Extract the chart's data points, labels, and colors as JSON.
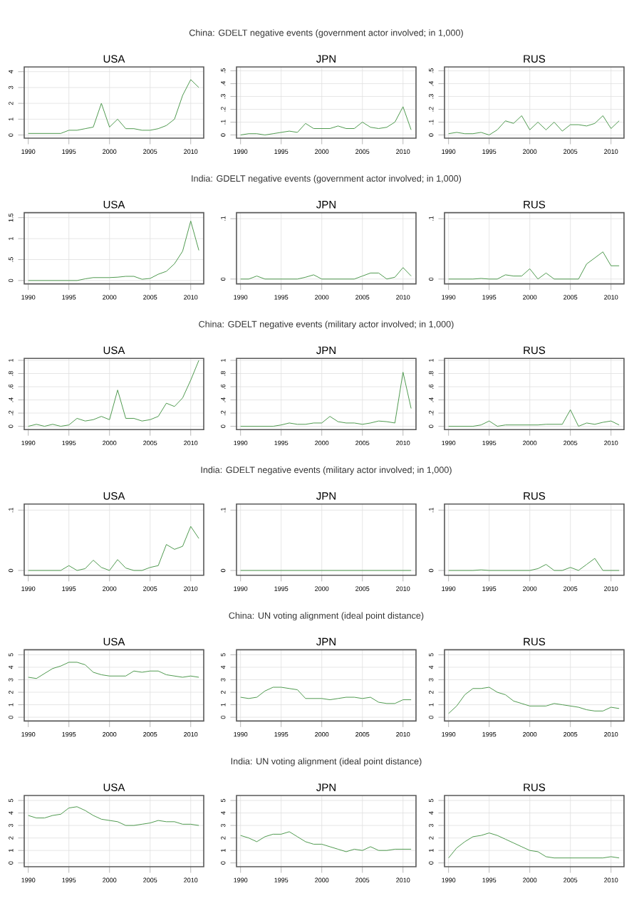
{
  "chart_data": [
    {
      "type": "line",
      "title": "USA",
      "x": [
        1990,
        1991,
        1992,
        1993,
        1994,
        1995,
        1996,
        1997,
        1998,
        1999,
        2000,
        2001,
        2002,
        2003,
        2004,
        2005,
        2006,
        2007,
        2008,
        2009,
        2010,
        2011
      ],
      "values": [
        0.1,
        0.1,
        0.1,
        0.1,
        0.1,
        0.3,
        0.3,
        0.4,
        0.5,
        2.0,
        0.5,
        1.0,
        0.4,
        0.4,
        0.3,
        0.3,
        0.4,
        0.6,
        1.0,
        2.5,
        3.5,
        3.0
      ],
      "color": "#4f9a4f",
      "xlim": [
        1989.5,
        2011.6
      ],
      "ylim": [
        -0.2,
        4.3
      ],
      "xticks": [
        1990,
        1995,
        2000,
        2005,
        2010
      ],
      "yticks": [
        0,
        1,
        2,
        3,
        4
      ],
      "grid": true
    },
    {
      "type": "line",
      "title": "JPN",
      "annotations": [
        "China: GDELT negative events (government actor involved; in 1,000)"
      ],
      "x": [
        1990,
        1991,
        1992,
        1993,
        1994,
        1995,
        1996,
        1997,
        1998,
        1999,
        2000,
        2001,
        2002,
        2003,
        2004,
        2005,
        2006,
        2007,
        2008,
        2009,
        2010,
        2011
      ],
      "values": [
        0.0,
        0.01,
        0.01,
        0.0,
        0.01,
        0.02,
        0.03,
        0.02,
        0.09,
        0.05,
        0.05,
        0.05,
        0.07,
        0.05,
        0.05,
        0.1,
        0.06,
        0.05,
        0.06,
        0.1,
        0.22,
        0.04
      ],
      "color": "#4f9a4f",
      "xlim": [
        1989.5,
        2011.6
      ],
      "ylim": [
        -0.025,
        0.53
      ],
      "xticks": [
        1990,
        1995,
        2000,
        2005,
        2010
      ],
      "yticks": [
        0,
        {
          "value": 0.1,
          "label": ".1"
        },
        {
          "value": 0.2,
          "label": ".2"
        },
        {
          "value": 0.3,
          "label": ".3"
        },
        {
          "value": 0.4,
          "label": ".4"
        },
        {
          "value": 0.5,
          "label": ".5"
        }
      ],
      "grid": true
    },
    {
      "type": "line",
      "title": "RUS",
      "x": [
        1990,
        1991,
        1992,
        1993,
        1994,
        1995,
        1996,
        1997,
        1998,
        1999,
        2000,
        2001,
        2002,
        2003,
        2004,
        2005,
        2006,
        2007,
        2008,
        2009,
        2010,
        2011
      ],
      "values": [
        0.01,
        0.02,
        0.01,
        0.01,
        0.02,
        0.0,
        0.04,
        0.11,
        0.09,
        0.15,
        0.04,
        0.1,
        0.04,
        0.1,
        0.03,
        0.08,
        0.08,
        0.07,
        0.09,
        0.15,
        0.05,
        0.11
      ],
      "color": "#4f9a4f",
      "xlim": [
        1989.5,
        2011.6
      ],
      "ylim": [
        -0.025,
        0.53
      ],
      "xticks": [
        1990,
        1995,
        2000,
        2005,
        2010
      ],
      "yticks": [
        0,
        {
          "value": 0.1,
          "label": ".1"
        },
        {
          "value": 0.2,
          "label": ".2"
        },
        {
          "value": 0.3,
          "label": ".3"
        },
        {
          "value": 0.4,
          "label": ".4"
        },
        {
          "value": 0.5,
          "label": ".5"
        }
      ],
      "grid": true
    },
    {
      "type": "line",
      "title": "USA",
      "x": [
        1990,
        1991,
        1992,
        1993,
        1994,
        1995,
        1996,
        1997,
        1998,
        1999,
        2000,
        2001,
        2002,
        2003,
        2004,
        2005,
        2006,
        2007,
        2008,
        2009,
        2010,
        2011
      ],
      "values": [
        0,
        0,
        0,
        0,
        0,
        0,
        0,
        0.04,
        0.07,
        0.07,
        0.07,
        0.08,
        0.1,
        0.1,
        0.03,
        0.05,
        0.15,
        0.22,
        0.4,
        0.7,
        1.42,
        0.72
      ],
      "color": "#4f9a4f",
      "xlim": [
        1989.5,
        2011.6
      ],
      "ylim": [
        -0.08,
        1.62
      ],
      "xticks": [
        1990,
        1995,
        2000,
        2005,
        2010
      ],
      "yticks": [
        0,
        {
          "value": 0.5,
          "label": ".5"
        },
        1,
        1.5
      ],
      "grid": true
    },
    {
      "type": "line",
      "title": "JPN",
      "annotations": [
        "India: GDELT negative events (government actor involved; in 1,000)"
      ],
      "x": [
        1990,
        1991,
        1992,
        1993,
        1994,
        1995,
        1996,
        1997,
        1998,
        1999,
        2000,
        2001,
        2002,
        2003,
        2004,
        2005,
        2006,
        2007,
        2008,
        2009,
        2010,
        2011
      ],
      "values": [
        0,
        0,
        0.005,
        0,
        0,
        0,
        0,
        0,
        0.003,
        0.007,
        0,
        0,
        0,
        0,
        0,
        0.005,
        0.01,
        0.01,
        0,
        0.003,
        0.019,
        0.005
      ],
      "color": "#4f9a4f",
      "xlim": [
        1989.5,
        2011.6
      ],
      "ylim": [
        -0.008,
        0.11
      ],
      "xticks": [
        1990,
        1995,
        2000,
        2005,
        2010
      ],
      "yticks": [
        0,
        {
          "value": 0.1,
          "label": ".1"
        }
      ],
      "grid": true
    },
    {
      "type": "line",
      "title": "RUS",
      "x": [
        1990,
        1991,
        1992,
        1993,
        1994,
        1995,
        1996,
        1997,
        1998,
        1999,
        2000,
        2001,
        2002,
        2003,
        2004,
        2005,
        2006,
        2007,
        2008,
        2009,
        2010,
        2011
      ],
      "values": [
        0,
        0,
        0,
        0,
        0.001,
        0,
        0,
        0.007,
        0.005,
        0.005,
        0.017,
        0,
        0.01,
        0,
        0,
        0,
        0,
        0.025,
        0.035,
        0.045,
        0.022,
        0.022
      ],
      "color": "#4f9a4f",
      "xlim": [
        1989.5,
        2011.6
      ],
      "ylim": [
        -0.008,
        0.11
      ],
      "xticks": [
        1990,
        1995,
        2000,
        2005,
        2010
      ],
      "yticks": [
        0,
        {
          "value": 0.1,
          "label": ".1"
        }
      ],
      "grid": true
    },
    {
      "type": "line",
      "title": "USA",
      "x": [
        1990,
        1991,
        1992,
        1993,
        1994,
        1995,
        1996,
        1997,
        1998,
        1999,
        2000,
        2001,
        2002,
        2003,
        2004,
        2005,
        2006,
        2007,
        2008,
        2009,
        2010,
        2011
      ],
      "values": [
        0,
        0.03,
        0,
        0.03,
        0,
        0.02,
        0.12,
        0.08,
        0.1,
        0.15,
        0.1,
        0.55,
        0.12,
        0.12,
        0.08,
        0.1,
        0.15,
        0.35,
        0.3,
        0.43,
        0.7,
        1.0
      ],
      "color": "#4f9a4f",
      "xlim": [
        1989.5,
        2011.6
      ],
      "ylim": [
        -0.05,
        1.03
      ],
      "xticks": [
        1990,
        1995,
        2000,
        2005,
        2010
      ],
      "yticks": [
        0,
        {
          "value": 0.2,
          "label": ".2"
        },
        {
          "value": 0.4,
          "label": ".4"
        },
        {
          "value": 0.6,
          "label": ".6"
        },
        {
          "value": 0.8,
          "label": ".8"
        },
        1
      ],
      "grid": true
    },
    {
      "type": "line",
      "title": "JPN",
      "annotations": [
        "China: GDELT negative events (military actor involved; in 1,000)"
      ],
      "x": [
        1990,
        1991,
        1992,
        1993,
        1994,
        1995,
        1996,
        1997,
        1998,
        1999,
        2000,
        2001,
        2002,
        2003,
        2004,
        2005,
        2006,
        2007,
        2008,
        2009,
        2010,
        2011
      ],
      "values": [
        0,
        0,
        0,
        0,
        0,
        0.02,
        0.05,
        0.03,
        0.03,
        0.05,
        0.05,
        0.15,
        0.07,
        0.05,
        0.05,
        0.03,
        0.05,
        0.08,
        0.07,
        0.05,
        0.82,
        0.27
      ],
      "color": "#4f9a4f",
      "xlim": [
        1989.5,
        2011.6
      ],
      "ylim": [
        -0.05,
        1.03
      ],
      "xticks": [
        1990,
        1995,
        2000,
        2005,
        2010
      ],
      "yticks": [
        0,
        {
          "value": 0.2,
          "label": ".2"
        },
        {
          "value": 0.4,
          "label": ".4"
        },
        {
          "value": 0.6,
          "label": ".6"
        },
        {
          "value": 0.8,
          "label": ".8"
        },
        1
      ],
      "grid": true
    },
    {
      "type": "line",
      "title": "RUS",
      "x": [
        1990,
        1991,
        1992,
        1993,
        1994,
        1995,
        1996,
        1997,
        1998,
        1999,
        2000,
        2001,
        2002,
        2003,
        2004,
        2005,
        2006,
        2007,
        2008,
        2009,
        2010,
        2011
      ],
      "values": [
        0,
        0,
        0,
        0,
        0.02,
        0.08,
        0,
        0.02,
        0.02,
        0.02,
        0.02,
        0.02,
        0.03,
        0.03,
        0.03,
        0.25,
        0,
        0.05,
        0.03,
        0.06,
        0.08,
        0.02
      ],
      "color": "#4f9a4f",
      "xlim": [
        1989.5,
        2011.6
      ],
      "ylim": [
        -0.05,
        1.03
      ],
      "xticks": [
        1990,
        1995,
        2000,
        2005,
        2010
      ],
      "yticks": [
        0,
        {
          "value": 0.2,
          "label": ".2"
        },
        {
          "value": 0.4,
          "label": ".4"
        },
        {
          "value": 0.6,
          "label": ".6"
        },
        {
          "value": 0.8,
          "label": ".8"
        },
        1
      ],
      "grid": true
    },
    {
      "type": "line",
      "title": "USA",
      "x": [
        1990,
        1991,
        1992,
        1993,
        1994,
        1995,
        1996,
        1997,
        1998,
        1999,
        2000,
        2001,
        2002,
        2003,
        2004,
        2005,
        2006,
        2007,
        2008,
        2009,
        2010,
        2011
      ],
      "values": [
        0,
        0,
        0,
        0,
        0,
        0.008,
        0,
        0.003,
        0.017,
        0.005,
        0,
        0.018,
        0.004,
        0,
        0,
        0.005,
        0.008,
        0.043,
        0.035,
        0.04,
        0.073,
        0.053
      ],
      "color": "#4f9a4f",
      "xlim": [
        1989.5,
        2011.6
      ],
      "ylim": [
        -0.008,
        0.11
      ],
      "xticks": [
        1990,
        1995,
        2000,
        2005,
        2010
      ],
      "yticks": [
        0,
        {
          "value": 0.1,
          "label": ".1"
        }
      ],
      "grid": true
    },
    {
      "type": "line",
      "title": "JPN",
      "annotations": [
        "India: GDELT negative events (military actor involved; in 1,000)"
      ],
      "x": [
        1990,
        1991,
        1992,
        1993,
        1994,
        1995,
        1996,
        1997,
        1998,
        1999,
        2000,
        2001,
        2002,
        2003,
        2004,
        2005,
        2006,
        2007,
        2008,
        2009,
        2010,
        2011
      ],
      "values": [
        0,
        0,
        0,
        0,
        0,
        0,
        0,
        0,
        0,
        0,
        0,
        0,
        0,
        0,
        0,
        0,
        0,
        0,
        0,
        0,
        0,
        0
      ],
      "color": "#4f9a4f",
      "xlim": [
        1989.5,
        2011.6
      ],
      "ylim": [
        -0.008,
        0.11
      ],
      "xticks": [
        1990,
        1995,
        2000,
        2005,
        2010
      ],
      "yticks": [
        0,
        {
          "value": 0.1,
          "label": ".1"
        }
      ],
      "grid": true
    },
    {
      "type": "line",
      "title": "RUS",
      "x": [
        1990,
        1991,
        1992,
        1993,
        1994,
        1995,
        1996,
        1997,
        1998,
        1999,
        2000,
        2001,
        2002,
        2003,
        2004,
        2005,
        2006,
        2007,
        2008,
        2009,
        2010,
        2011
      ],
      "values": [
        0,
        0,
        0,
        0,
        0.001,
        0,
        0,
        0,
        0,
        0,
        0,
        0.003,
        0.01,
        0,
        0,
        0.005,
        0,
        0.01,
        0.02,
        0,
        0,
        0
      ],
      "color": "#4f9a4f",
      "xlim": [
        1989.5,
        2011.6
      ],
      "ylim": [
        -0.008,
        0.11
      ],
      "xticks": [
        1990,
        1995,
        2000,
        2005,
        2010
      ],
      "yticks": [
        0,
        {
          "value": 0.1,
          "label": ".1"
        }
      ],
      "grid": true
    },
    {
      "type": "line",
      "title": "USA",
      "x": [
        1990,
        1991,
        1992,
        1993,
        1994,
        1995,
        1996,
        1997,
        1998,
        1999,
        2000,
        2001,
        2002,
        2003,
        2004,
        2005,
        2006,
        2007,
        2008,
        2009,
        2010,
        2011
      ],
      "values": [
        3.2,
        3.1,
        3.5,
        3.9,
        4.1,
        4.4,
        4.4,
        4.2,
        3.6,
        3.4,
        3.3,
        3.3,
        3.3,
        3.7,
        3.6,
        3.7,
        3.7,
        3.4,
        3.3,
        3.2,
        3.3,
        3.2
      ],
      "color": "#4f9a4f",
      "xlim": [
        1989.5,
        2011.6
      ],
      "ylim": [
        -0.3,
        5.4
      ],
      "xticks": [
        1990,
        1995,
        2000,
        2005,
        2010
      ],
      "yticks": [
        0,
        1,
        2,
        3,
        4,
        5
      ],
      "grid": true
    },
    {
      "type": "line",
      "title": "JPN",
      "annotations": [
        "China: UN voting alignment (ideal point distance)"
      ],
      "x": [
        1990,
        1991,
        1992,
        1993,
        1994,
        1995,
        1996,
        1997,
        1998,
        1999,
        2000,
        2001,
        2002,
        2003,
        2004,
        2005,
        2006,
        2007,
        2008,
        2009,
        2010,
        2011
      ],
      "values": [
        1.6,
        1.5,
        1.6,
        2.1,
        2.4,
        2.4,
        2.3,
        2.2,
        1.5,
        1.5,
        1.5,
        1.4,
        1.5,
        1.6,
        1.6,
        1.5,
        1.6,
        1.2,
        1.1,
        1.1,
        1.4,
        1.4
      ],
      "color": "#4f9a4f",
      "xlim": [
        1989.5,
        2011.6
      ],
      "ylim": [
        -0.3,
        5.4
      ],
      "xticks": [
        1990,
        1995,
        2000,
        2005,
        2010
      ],
      "yticks": [
        0,
        1,
        2,
        3,
        4,
        5
      ],
      "grid": true
    },
    {
      "type": "line",
      "title": "RUS",
      "x": [
        1990,
        1991,
        1992,
        1993,
        1994,
        1995,
        1996,
        1997,
        1998,
        1999,
        2000,
        2001,
        2002,
        2003,
        2004,
        2005,
        2006,
        2007,
        2008,
        2009,
        2010,
        2011
      ],
      "values": [
        0.3,
        0.9,
        1.8,
        2.3,
        2.3,
        2.4,
        2.0,
        1.8,
        1.3,
        1.1,
        0.9,
        0.9,
        0.9,
        1.1,
        1.0,
        0.9,
        0.8,
        0.6,
        0.5,
        0.5,
        0.8,
        0.7
      ],
      "color": "#4f9a4f",
      "xlim": [
        1989.5,
        2011.6
      ],
      "ylim": [
        -0.3,
        5.4
      ],
      "xticks": [
        1990,
        1995,
        2000,
        2005,
        2010
      ],
      "yticks": [
        0,
        1,
        2,
        3,
        4,
        5
      ],
      "grid": true
    },
    {
      "type": "line",
      "title": "USA",
      "x": [
        1990,
        1991,
        1992,
        1993,
        1994,
        1995,
        1996,
        1997,
        1998,
        1999,
        2000,
        2001,
        2002,
        2003,
        2004,
        2005,
        2006,
        2007,
        2008,
        2009,
        2010,
        2011
      ],
      "values": [
        3.8,
        3.6,
        3.6,
        3.8,
        3.9,
        4.4,
        4.5,
        4.2,
        3.8,
        3.5,
        3.4,
        3.3,
        3.0,
        3.0,
        3.1,
        3.2,
        3.4,
        3.3,
        3.3,
        3.1,
        3.1,
        3.0
      ],
      "color": "#4f9a4f",
      "xlim": [
        1989.5,
        2011.6
      ],
      "ylim": [
        -0.3,
        5.4
      ],
      "xticks": [
        1990,
        1995,
        2000,
        2005,
        2010
      ],
      "yticks": [
        0,
        1,
        2,
        3,
        4,
        5
      ],
      "grid": true
    },
    {
      "type": "line",
      "title": "JPN",
      "annotations": [
        "India: UN voting alignment (ideal point distance)"
      ],
      "x": [
        1990,
        1991,
        1992,
        1993,
        1994,
        1995,
        1996,
        1997,
        1998,
        1999,
        2000,
        2001,
        2002,
        2003,
        2004,
        2005,
        2006,
        2007,
        2008,
        2009,
        2010,
        2011
      ],
      "values": [
        2.2,
        2.0,
        1.7,
        2.1,
        2.3,
        2.3,
        2.5,
        2.1,
        1.7,
        1.5,
        1.5,
        1.3,
        1.1,
        0.9,
        1.1,
        1.0,
        1.3,
        1.0,
        1.0,
        1.1,
        1.1,
        1.1
      ],
      "color": "#4f9a4f",
      "xlim": [
        1989.5,
        2011.6
      ],
      "ylim": [
        -0.3,
        5.4
      ],
      "xticks": [
        1990,
        1995,
        2000,
        2005,
        2010
      ],
      "yticks": [
        0,
        1,
        2,
        3,
        4,
        5
      ],
      "grid": true
    },
    {
      "type": "line",
      "title": "RUS",
      "x": [
        1990,
        1991,
        1992,
        1993,
        1994,
        1995,
        1996,
        1997,
        1998,
        1999,
        2000,
        2001,
        2002,
        2003,
        2004,
        2005,
        2006,
        2007,
        2008,
        2009,
        2010,
        2011
      ],
      "values": [
        0.4,
        1.2,
        1.7,
        2.1,
        2.2,
        2.4,
        2.2,
        1.9,
        1.6,
        1.3,
        1.0,
        0.9,
        0.5,
        0.4,
        0.4,
        0.4,
        0.4,
        0.4,
        0.4,
        0.4,
        0.5,
        0.4
      ],
      "color": "#4f9a4f",
      "xlim": [
        1989.5,
        2011.6
      ],
      "ylim": [
        -0.3,
        5.4
      ],
      "xticks": [
        1990,
        1995,
        2000,
        2005,
        2010
      ],
      "yticks": [
        0,
        1,
        2,
        3,
        4,
        5
      ],
      "grid": true
    }
  ]
}
